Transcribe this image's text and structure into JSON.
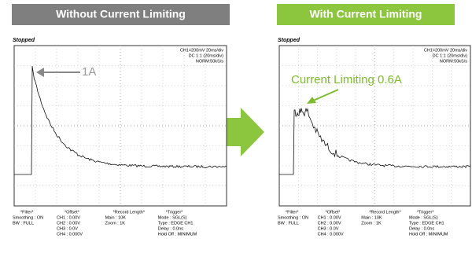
{
  "panels": [
    {
      "header": "Without Current Limiting",
      "status": "Stopped",
      "settings": [
        "CH1=200mV   20ms/div",
        "DC 1:1   (20ms/div)",
        "NORM:50kS/s"
      ],
      "annotation": "1A",
      "footer": [
        [
          "*Filter*",
          "Smoothing : ON",
          "BW : FULL"
        ],
        [
          "*Offset*",
          "CH1 :   0.00V",
          "CH2 :   0.00V",
          "CH3 :   0.0V",
          "CH4 :   0.000V"
        ],
        [
          "*Record Length*",
          "Main :   10K",
          "Zoom :   1K"
        ],
        [
          "*Trigger*",
          "Mode : SGL(S)",
          "Type : EDGE CH1",
          "Delay :   0.0ns",
          "Hold Off : MINIMUM"
        ]
      ]
    },
    {
      "header": "With Current Limiting",
      "status": "Stopped",
      "settings": [
        "CH1=200mV   20ms/div",
        "DC 1:1   (20ms/div)",
        "NORM:50kS/s"
      ],
      "annotation": "Current Limiting 0.6A",
      "footer": [
        [
          "*Filter*",
          "Smoothing : ON",
          "BW : FULL"
        ],
        [
          "*Offset*",
          "CH1 :   0.00V",
          "CH2 :   0.00V",
          "CH3 :   0.0V",
          "CH4 :   0.000V"
        ],
        [
          "*Record Length*",
          "Main :   10K",
          "Zoom :   1K"
        ],
        [
          "*Trigger*",
          "Mode : SGL(S)",
          "Type : EDGE CH1",
          "Delay :   0.0ns",
          "Hold Off : MINIMUM"
        ]
      ]
    }
  ]
}
